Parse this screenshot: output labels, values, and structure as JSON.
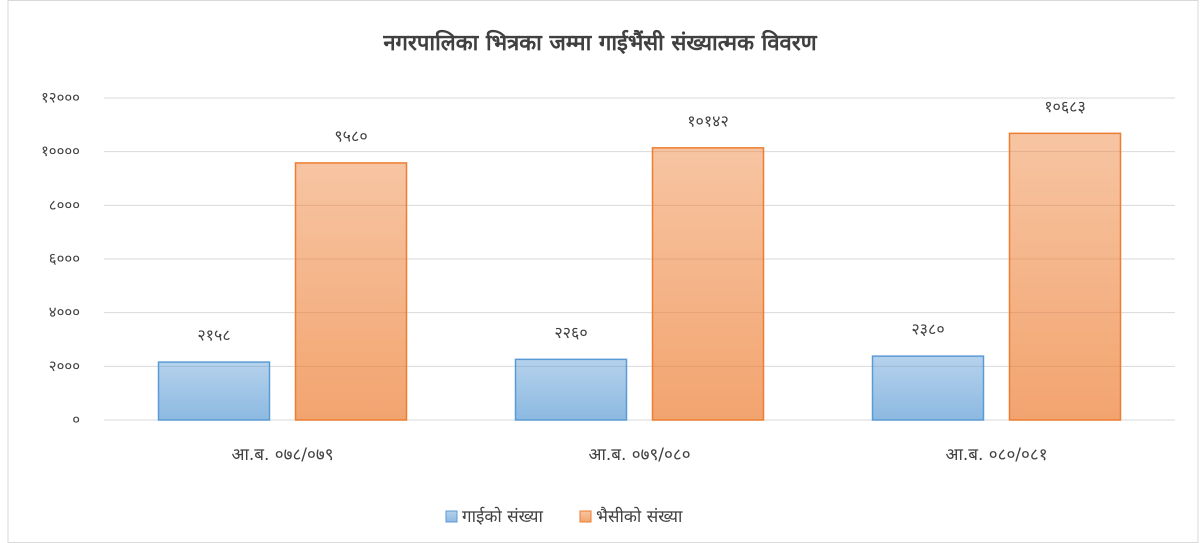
{
  "chart_data": {
    "type": "bar",
    "title": "नगरपालिका भित्रका जम्मा गाईभैंसी संख्यात्मक विवरण",
    "categories": [
      "आ.ब. ०७८/०७९",
      "आ.ब. ०७९/०८०",
      "आ.ब. ०८०/०८१"
    ],
    "series": [
      {
        "name": "गाईको संख्या",
        "color": "#5b9bd5",
        "values": [
          2158,
          2260,
          2380
        ],
        "value_labels": [
          "२१५८",
          "२२६०",
          "२३८०"
        ]
      },
      {
        "name": "भैसीको संख्या",
        "color": "#ed7d31",
        "values": [
          9580,
          10142,
          10683
        ],
        "value_labels": [
          "९५८०",
          "१०१४२",
          "१०६८३"
        ]
      }
    ],
    "ylim": [
      0,
      12000
    ],
    "yticks": [
      {
        "value": 0,
        "label": "०"
      },
      {
        "value": 2000,
        "label": "२०००"
      },
      {
        "value": 4000,
        "label": "४०००"
      },
      {
        "value": 6000,
        "label": "६०००"
      },
      {
        "value": 8000,
        "label": "८०००"
      },
      {
        "value": 10000,
        "label": "१००००"
      },
      {
        "value": 12000,
        "label": "१२०००"
      }
    ],
    "grid": true,
    "legend": "bottom"
  }
}
